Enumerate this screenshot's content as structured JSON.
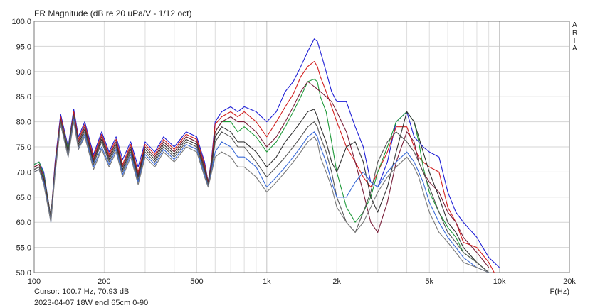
{
  "chart_data": {
    "type": "line",
    "title": "FR Magnitude (dB re 20 uPa/V - 1/12 oct)",
    "xlabel": "F(Hz)",
    "brand": "ARTA",
    "xscale": "log",
    "xlim": [
      100,
      20000
    ],
    "ylim": [
      50,
      100
    ],
    "xticks": [
      100,
      200,
      500,
      1000,
      2000,
      5000,
      10000,
      20000
    ],
    "xtick_labels": [
      "100",
      "200",
      "500",
      "1k",
      "2k",
      "5k",
      "10k",
      "20k"
    ],
    "yticks": [
      50,
      55,
      60,
      65,
      70,
      75,
      80,
      85,
      90,
      95,
      100
    ],
    "ytick_labels": [
      "50.0",
      "55.0",
      "60.0",
      "65.0",
      "70.0",
      "75.0",
      "80.0",
      "85.0",
      "90.0",
      "95.0",
      "100.0"
    ],
    "grid": true,
    "cursor_readout": "Cursor: 100.7 Hz, 70.93 dB",
    "note": "2023-04-07 18W encl 65cm 0-90",
    "series": [
      {
        "color": "#1f1fd6",
        "x": [
          100,
          105,
          110,
          118,
          123,
          130,
          140,
          148,
          155,
          165,
          180,
          195,
          210,
          225,
          240,
          260,
          280,
          300,
          330,
          360,
          400,
          450,
          500,
          540,
          560,
          580,
          600,
          640,
          700,
          750,
          800,
          900,
          1000,
          1100,
          1200,
          1300,
          1400,
          1500,
          1600,
          1650,
          1700,
          1800,
          1900,
          2000,
          2200,
          2400,
          2600,
          2800,
          3000,
          3300,
          3600,
          4000,
          4300,
          4500,
          4700,
          5000,
          5500,
          6000,
          6500,
          7000,
          8000,
          9000,
          10000
        ],
        "y": [
          71.5,
          72,
          70,
          61,
          72,
          81.5,
          75,
          82.5,
          77,
          80,
          73.5,
          78,
          74,
          77,
          72.5,
          76,
          71,
          76,
          74,
          77,
          75,
          78,
          77,
          72,
          68,
          73,
          80,
          82,
          83,
          82,
          83,
          82,
          80,
          82,
          86,
          88,
          91,
          94,
          96.5,
          96,
          94,
          90,
          86,
          84,
          84,
          79,
          75,
          68,
          67,
          72,
          80,
          82,
          77,
          76,
          75,
          74,
          73,
          66,
          62,
          60,
          57,
          53,
          51
        ]
      },
      {
        "color": "#d21f1f",
        "x": [
          100,
          105,
          110,
          118,
          123,
          130,
          140,
          148,
          155,
          165,
          180,
          195,
          210,
          225,
          240,
          260,
          280,
          300,
          330,
          360,
          400,
          450,
          500,
          540,
          560,
          580,
          600,
          640,
          700,
          750,
          800,
          900,
          1000,
          1100,
          1200,
          1300,
          1400,
          1500,
          1600,
          1650,
          1700,
          1800,
          1900,
          2000,
          2200,
          2400,
          2600,
          2800,
          3000,
          3300,
          3600,
          4000,
          4300,
          4500,
          4700,
          5000,
          5500,
          6000,
          6500,
          7000,
          8000,
          9000,
          9500
        ],
        "y": [
          71,
          71.5,
          69.5,
          61,
          71.5,
          81,
          74.5,
          82,
          76.5,
          79.5,
          73,
          77.5,
          73.5,
          76.5,
          71.5,
          75.5,
          70,
          75.5,
          73.5,
          76.5,
          74.5,
          77.5,
          76.5,
          71.5,
          68,
          72.5,
          79.5,
          81,
          82,
          81,
          82,
          80,
          77,
          80,
          83,
          85.5,
          89,
          91,
          92,
          91,
          89,
          86,
          83,
          80,
          75,
          72,
          69,
          67,
          70,
          74,
          79,
          79,
          75,
          73,
          72,
          71,
          70,
          63,
          60,
          56,
          55,
          52,
          50
        ]
      },
      {
        "color": "#1f9a3a",
        "x": [
          100,
          105,
          110,
          118,
          123,
          130,
          140,
          148,
          155,
          165,
          180,
          195,
          210,
          225,
          240,
          260,
          280,
          300,
          330,
          360,
          400,
          450,
          500,
          540,
          560,
          580,
          600,
          640,
          700,
          750,
          800,
          900,
          1000,
          1100,
          1200,
          1300,
          1400,
          1500,
          1600,
          1650,
          1700,
          1800,
          1900,
          2000,
          2200,
          2400,
          2600,
          2800,
          3000,
          3300,
          3600,
          4000,
          4300,
          4500,
          4700,
          5000,
          5500,
          6000,
          6500,
          7000,
          8000,
          9000
        ],
        "y": [
          71.5,
          72,
          69.5,
          61,
          71,
          80.5,
          74.5,
          81.5,
          76,
          79,
          72.5,
          77,
          73,
          76,
          71,
          75,
          69.5,
          75,
          73,
          76,
          74,
          77,
          76,
          71,
          68,
          72,
          78,
          80,
          80,
          78,
          79,
          77,
          74,
          76,
          79,
          82,
          85,
          88,
          88.5,
          88,
          85,
          82,
          76,
          70,
          63,
          60,
          62,
          65,
          70,
          75,
          80,
          82,
          80,
          76,
          71,
          66,
          62,
          59,
          57,
          54,
          52,
          50
        ]
      },
      {
        "color": "#7a1f3a",
        "x": [
          100,
          105,
          110,
          118,
          123,
          130,
          140,
          148,
          155,
          165,
          180,
          195,
          210,
          225,
          240,
          260,
          280,
          300,
          330,
          360,
          400,
          450,
          500,
          540,
          560,
          580,
          600,
          640,
          700,
          750,
          800,
          900,
          1000,
          1100,
          1200,
          1300,
          1400,
          1500,
          1600,
          1650,
          1700,
          1800,
          1900,
          2000,
          2200,
          2400,
          2600,
          2800,
          3000,
          3300,
          3600,
          4000,
          4300,
          4500,
          4700,
          5000,
          5500,
          6000,
          6500,
          7000,
          8000,
          9000
        ],
        "y": [
          71,
          71.5,
          69,
          61,
          71,
          80.5,
          74,
          81.5,
          76,
          79,
          72.5,
          77,
          73,
          76,
          71,
          75,
          69.5,
          75,
          73,
          76,
          74,
          77,
          76,
          71,
          68,
          72,
          78,
          80,
          81,
          80,
          80,
          78,
          75,
          77,
          80,
          83,
          86,
          88,
          87,
          86.5,
          86,
          85,
          84,
          82,
          78,
          72,
          66,
          60,
          58,
          64,
          72,
          78,
          76,
          72,
          70,
          68,
          66,
          62,
          60,
          57,
          54,
          51
        ]
      },
      {
        "color": "#333333",
        "x": [
          100,
          105,
          110,
          118,
          123,
          130,
          140,
          148,
          155,
          165,
          180,
          195,
          210,
          225,
          240,
          260,
          280,
          300,
          330,
          360,
          400,
          450,
          500,
          540,
          560,
          580,
          600,
          640,
          700,
          750,
          800,
          900,
          1000,
          1100,
          1200,
          1300,
          1400,
          1500,
          1600,
          1650,
          1700,
          1800,
          1900,
          2000,
          2200,
          2400,
          2600,
          2800,
          3000,
          3300,
          3600,
          4000,
          4300,
          4500,
          4700,
          5000,
          5500,
          6000,
          6500,
          7000,
          8000,
          9000
        ],
        "y": [
          70.5,
          71,
          68.5,
          61,
          70.5,
          80,
          74,
          81,
          75.5,
          78.5,
          72,
          76.5,
          72.5,
          75.5,
          70.5,
          74.5,
          69,
          74.5,
          72.5,
          75.5,
          73.5,
          76.5,
          75.5,
          70.5,
          67.5,
          71.5,
          77,
          79,
          78,
          76,
          76,
          74,
          71,
          73,
          76,
          78,
          80,
          82,
          82.5,
          81,
          79,
          76,
          72,
          70,
          75,
          76,
          72,
          65,
          62,
          67,
          74,
          82,
          80,
          77,
          74,
          70,
          65,
          60,
          58,
          55,
          52,
          50
        ]
      },
      {
        "color": "#555555",
        "x": [
          100,
          105,
          110,
          118,
          123,
          130,
          140,
          148,
          155,
          165,
          180,
          195,
          210,
          225,
          240,
          260,
          280,
          300,
          330,
          360,
          400,
          450,
          500,
          540,
          560,
          580,
          600,
          640,
          700,
          750,
          800,
          900,
          1000,
          1100,
          1200,
          1300,
          1400,
          1500,
          1600,
          1650,
          1700,
          1800,
          1900,
          2000,
          2200,
          2400,
          2600,
          2800,
          3000,
          3300,
          3600,
          4000,
          4300,
          4500,
          4700,
          5000,
          5500,
          6000,
          6500,
          7000,
          8000,
          9000
        ],
        "y": [
          70.5,
          71,
          68,
          61,
          70,
          80,
          73.5,
          81,
          75,
          78,
          71.5,
          76,
          72,
          75,
          70,
          74,
          68.5,
          74,
          72,
          75,
          73,
          76,
          75,
          70,
          67.5,
          71,
          76,
          78,
          77,
          75,
          75,
          72,
          69,
          71,
          73,
          75,
          77,
          79,
          80,
          79,
          77,
          74,
          70,
          65,
          60,
          58,
          62,
          66,
          72,
          76,
          78,
          76,
          74,
          72,
          70,
          67,
          62,
          58,
          56,
          54,
          52,
          50
        ]
      },
      {
        "color": "#3a6ad6",
        "x": [
          100,
          105,
          110,
          118,
          123,
          130,
          140,
          148,
          155,
          165,
          180,
          195,
          210,
          225,
          240,
          260,
          280,
          300,
          330,
          360,
          400,
          450,
          500,
          540,
          560,
          580,
          600,
          640,
          700,
          750,
          800,
          900,
          1000,
          1100,
          1200,
          1300,
          1400,
          1500,
          1600,
          1650,
          1700,
          1800,
          1900,
          2000,
          2200,
          2400,
          2600,
          2800,
          3000,
          3300,
          3600,
          4000,
          4300,
          4500,
          4700,
          5000,
          5500,
          6000,
          6500,
          7000,
          8000,
          9000
        ],
        "y": [
          70,
          70.5,
          68,
          60,
          70,
          79.5,
          73,
          80.5,
          74.5,
          77.5,
          71,
          75,
          71.5,
          74.5,
          69.5,
          73.5,
          68,
          73.5,
          71.5,
          74.5,
          72.5,
          75.5,
          74.5,
          69.5,
          67,
          70.5,
          74,
          76,
          75,
          73,
          73,
          71,
          67,
          69,
          71,
          73,
          75,
          77,
          78,
          77,
          75,
          72,
          68,
          65,
          65,
          68,
          70,
          68,
          67,
          70,
          72,
          74,
          72,
          70,
          68,
          64,
          60,
          57,
          55,
          53,
          51,
          50
        ]
      },
      {
        "color": "#7a7a7a",
        "x": [
          100,
          105,
          110,
          118,
          123,
          130,
          140,
          148,
          155,
          165,
          180,
          195,
          210,
          225,
          240,
          260,
          280,
          300,
          330,
          360,
          400,
          450,
          500,
          540,
          560,
          580,
          600,
          640,
          700,
          750,
          800,
          900,
          1000,
          1100,
          1200,
          1300,
          1400,
          1500,
          1600,
          1650,
          1700,
          1800,
          1900,
          2000,
          2200,
          2400,
          2600,
          2800,
          3000,
          3300,
          3600,
          4000,
          4300,
          4500,
          4700,
          5000,
          5500,
          6000,
          6500,
          7000,
          8000,
          9000
        ],
        "y": [
          70,
          70.5,
          67.5,
          60,
          69.5,
          79.5,
          73,
          80,
          74.5,
          77,
          70.5,
          74.5,
          71,
          74,
          69,
          73,
          67.5,
          73,
          71,
          74,
          72,
          75,
          74,
          69,
          67,
          70,
          73,
          74,
          73,
          71,
          71,
          69,
          66,
          68,
          70,
          72,
          74,
          76,
          77,
          76,
          73,
          70,
          67,
          63,
          60,
          58,
          60,
          63,
          66,
          69,
          71,
          73,
          71,
          69,
          66,
          62,
          58,
          56,
          54,
          52,
          51,
          50
        ]
      }
    ]
  }
}
